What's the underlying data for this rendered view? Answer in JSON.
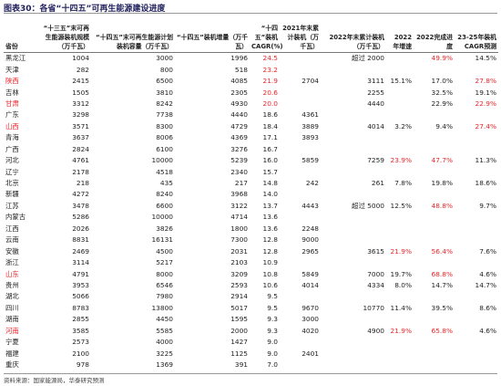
{
  "title": "图表30：各省“十四五”可再生能源建设进度",
  "table": {
    "headers": [
      "省份",
      "“十三五”末可再生能源装机规模（万千瓦）",
      "“十四五”末可再生能源计划装机容量（万千瓦）",
      "“十四五”装机增量（万千瓦）",
      "“十四五”装机 CAGR(%)",
      "2021年末累计装机（万千瓦）",
      "2022年末累计装机（万千瓦）",
      "2022年增速",
      "2022完成进度",
      "23-25年装机CAGR预测"
    ],
    "rows": [
      [
        "黑龙江",
        "1004",
        "3000",
        "1996",
        "24.5",
        null,
        "超过 2000",
        null,
        "49.9%",
        "14.5%"
      ],
      [
        "天津",
        "282",
        "800",
        "518",
        "23.2",
        null,
        null,
        null,
        null,
        null
      ],
      [
        "陕西",
        "2415",
        "6500",
        "4085",
        "21.9",
        "2704",
        "3111",
        "15.1%",
        "17.0%",
        "27.8%"
      ],
      [
        "吉林",
        "1505",
        "3810",
        "2305",
        "20.6",
        null,
        "2255",
        null,
        "32.5%",
        "19.1%"
      ],
      [
        "甘肃",
        "3312",
        "8242",
        "4930",
        "20.0",
        null,
        "4440",
        null,
        "22.9%",
        "22.9%"
      ],
      [
        "广东",
        "3298",
        "7738",
        "4440",
        "18.6",
        "4361",
        null,
        null,
        null,
        null
      ],
      [
        "山西",
        "3571",
        "8300",
        "4729",
        "18.4",
        "3889",
        "4014",
        "3.2%",
        "9.4%",
        "27.4%"
      ],
      [
        "青海",
        "3637",
        "8006",
        "4369",
        "17.1",
        "3893",
        null,
        null,
        null,
        null
      ],
      [
        "广西",
        "2824",
        "6100",
        "3276",
        "16.7",
        null,
        null,
        null,
        null,
        null
      ],
      [
        "河北",
        "4761",
        "10000",
        "5239",
        "16.0",
        "5859",
        "7259",
        "23.9%",
        "47.7%",
        "11.3%"
      ],
      [
        "辽宁",
        "2178",
        "4518",
        "2340",
        "15.7",
        null,
        null,
        null,
        null,
        null
      ],
      [
        "北京",
        "218",
        "435",
        "217",
        "14.8",
        "242",
        "261",
        "7.8%",
        "19.8%",
        "18.6%"
      ],
      [
        "新疆",
        "4272",
        "8240",
        "3968",
        "14.0",
        null,
        null,
        null,
        null,
        null
      ],
      [
        "江苏",
        "3478",
        "6600",
        "3122",
        "13.7",
        "4443",
        "超过 5000",
        "12.5%",
        "48.8%",
        "9.7%"
      ],
      [
        "内蒙古",
        "5286",
        "10000",
        "4714",
        "13.6",
        null,
        null,
        null,
        null,
        null
      ],
      [
        "江西",
        "2026",
        "3826",
        "1800",
        "13.6",
        "2248",
        null,
        null,
        null,
        null
      ],
      [
        "云南",
        "8831",
        "16131",
        "7300",
        "12.8",
        "9000",
        null,
        null,
        null,
        null
      ],
      [
        "安徽",
        "2469",
        "4500",
        "2031",
        "12.8",
        "2965",
        "3615",
        "21.9%",
        "56.4%",
        "7.6%"
      ],
      [
        "浙江",
        "3114",
        "5217",
        "2103",
        "10.9",
        null,
        null,
        null,
        null,
        null
      ],
      [
        "山东",
        "4791",
        "8000",
        "3209",
        "10.8",
        "5849",
        "7000",
        "19.7%",
        "68.8%",
        "4.6%"
      ],
      [
        "贵州",
        "3953",
        "6546",
        "2593",
        "10.6",
        "4014",
        "4334",
        "8.0%",
        "14.7%",
        "14.7%"
      ],
      [
        "湖北",
        "5066",
        "7980",
        "2914",
        "9.5",
        null,
        null,
        null,
        null,
        null
      ],
      [
        "四川",
        "8783",
        "13800",
        "5017",
        "9.5",
        "9670",
        "10770",
        "11.4%",
        "39.5%",
        "8.6%"
      ],
      [
        "湖南",
        "2855",
        "4450",
        "1595",
        "9.3",
        "3000",
        null,
        null,
        null,
        null
      ],
      [
        "河南",
        "3585",
        "5585",
        "2000",
        "9.3",
        "4020",
        "4900",
        "21.9%",
        "65.8%",
        "4.6%"
      ],
      [
        "宁夏",
        "2573",
        "4000",
        "1427",
        "9.0",
        null,
        null,
        null,
        null,
        null
      ],
      [
        "福建",
        "2100",
        "3225",
        "1125",
        "9.0",
        "2401",
        null,
        null,
        null,
        null
      ],
      [
        "重庆",
        "978",
        "1369",
        "391",
        "7.0",
        null,
        null,
        null,
        null,
        null
      ]
    ],
    "highlight": {
      "color": "#e8262a",
      "cells": [
        [
          0,
          4
        ],
        [
          0,
          8
        ],
        [
          1,
          4
        ],
        [
          2,
          0
        ],
        [
          2,
          4
        ],
        [
          2,
          9
        ],
        [
          3,
          4
        ],
        [
          4,
          0
        ],
        [
          4,
          4
        ],
        [
          4,
          9
        ],
        [
          6,
          0
        ],
        [
          6,
          9
        ],
        [
          9,
          7
        ],
        [
          9,
          8
        ],
        [
          13,
          8
        ],
        [
          17,
          7
        ],
        [
          17,
          8
        ],
        [
          19,
          0
        ],
        [
          19,
          8
        ],
        [
          24,
          0
        ],
        [
          24,
          7
        ],
        [
          24,
          8
        ]
      ]
    }
  },
  "source": "资料来源：国家能源局，华泰研究预测"
}
